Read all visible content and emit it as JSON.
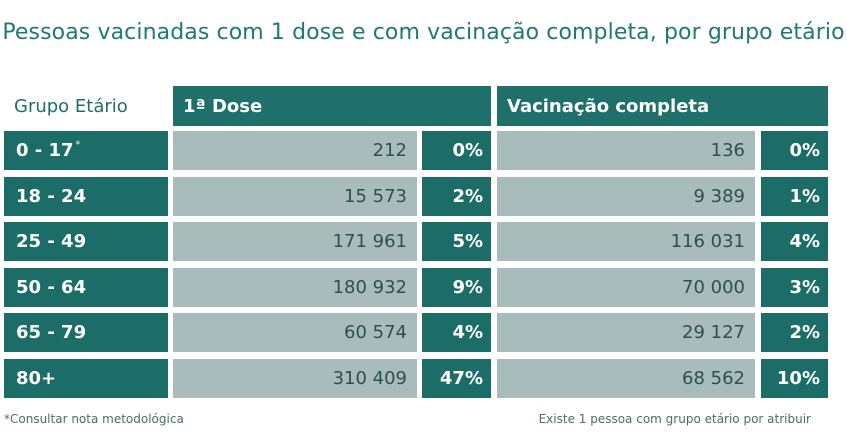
{
  "title": "Pessoas vacinadas com 1 dose e com vacinação completa, por grupo etário",
  "headers": {
    "age": "Grupo Etário",
    "dose1": "1ª Dose",
    "complete": "Vacinação completa"
  },
  "rows": [
    {
      "age": "0 - 17",
      "age_note": "*",
      "dose1": "212",
      "dose1_pct": "0%",
      "complete": "136",
      "complete_pct": "0%"
    },
    {
      "age": "18 - 24",
      "age_note": "",
      "dose1": "15 573",
      "dose1_pct": "2%",
      "complete": "9 389",
      "complete_pct": "1%"
    },
    {
      "age": "25 - 49",
      "age_note": "",
      "dose1": "171 961",
      "dose1_pct": "5%",
      "complete": "116 031",
      "complete_pct": "4%"
    },
    {
      "age": "50 - 64",
      "age_note": "",
      "dose1": "180 932",
      "dose1_pct": "9%",
      "complete": "70 000",
      "complete_pct": "3%"
    },
    {
      "age": "65 - 79",
      "age_note": "",
      "dose1": "60 574",
      "dose1_pct": "4%",
      "complete": "29 127",
      "complete_pct": "2%"
    },
    {
      "age": "80+",
      "age_note": "",
      "dose1": "310 409",
      "dose1_pct": "47%",
      "complete": "68 562",
      "complete_pct": "10%"
    }
  ],
  "footnotes": {
    "left": "*Consultar nota metodológica",
    "right": "Existe 1 pessoa com grupo etário por atribuir"
  },
  "colors": {
    "title": "#1f7a72",
    "dark_cell": "#1c6d68",
    "light_cell": "#a8bcbb"
  },
  "chart_data": {
    "type": "table",
    "title": "Pessoas vacinadas com 1 dose e com vacinação completa, por grupo etário",
    "columns": [
      "Grupo Etário",
      "1ª Dose",
      "1ª Dose %",
      "Vacinação completa",
      "Vacinação completa %"
    ],
    "categories": [
      "0 - 17",
      "18 - 24",
      "25 - 49",
      "50 - 64",
      "65 - 79",
      "80+"
    ],
    "series": [
      {
        "name": "1ª Dose",
        "values": [
          212,
          15573,
          171961,
          180932,
          60574,
          310409
        ],
        "percent": [
          0,
          2,
          5,
          9,
          4,
          47
        ]
      },
      {
        "name": "Vacinação completa",
        "values": [
          136,
          9389,
          116031,
          70000,
          29127,
          68562
        ],
        "percent": [
          0,
          1,
          4,
          3,
          2,
          10
        ]
      }
    ]
  }
}
